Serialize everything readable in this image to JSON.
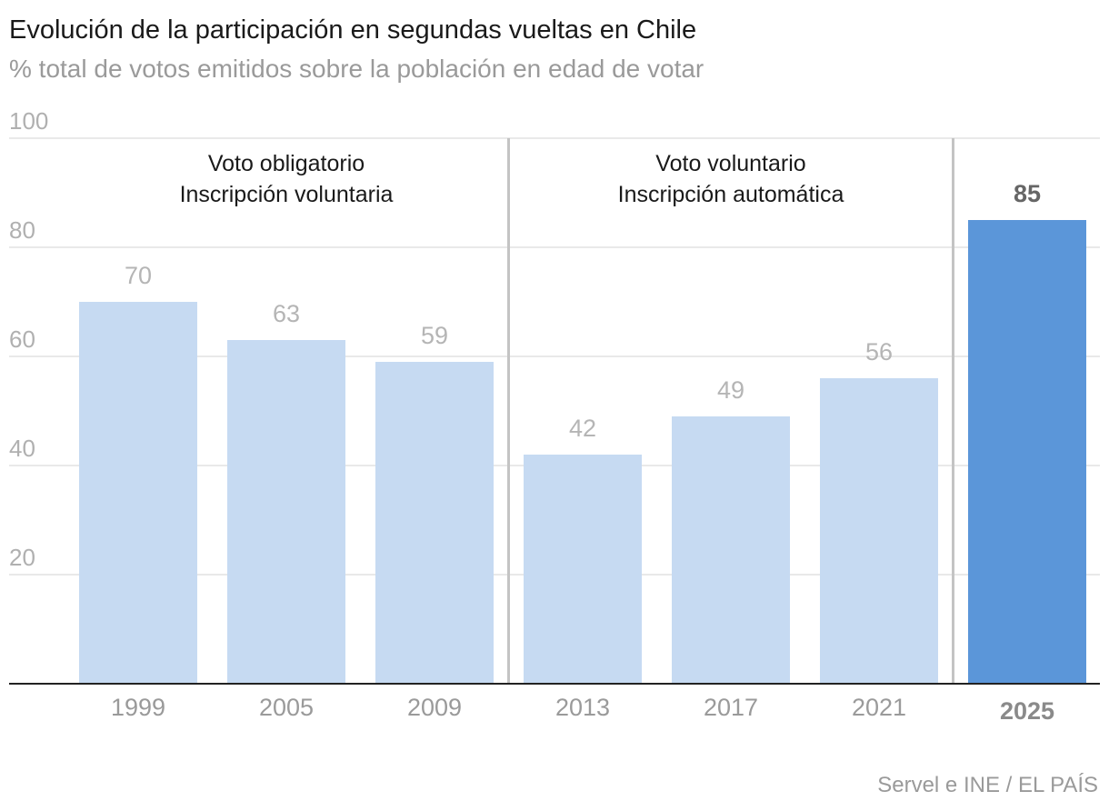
{
  "chart_data": {
    "type": "bar",
    "title": "Evolución de la participación en segundas vueltas en Chile",
    "subtitle": "% total de votos emitidos sobre la población en edad de votar",
    "categories": [
      "1999",
      "2005",
      "2009",
      "2013",
      "2017",
      "2021",
      "2025"
    ],
    "values": [
      70,
      63,
      59,
      42,
      49,
      56,
      85
    ],
    "highlight": [
      "2025"
    ],
    "ylim": [
      0,
      100
    ],
    "yticks": [
      20,
      40,
      60,
      80,
      100
    ],
    "grid": true,
    "periods": [
      {
        "line1": "Voto obligatorio",
        "line2": "Inscripción voluntaria",
        "categories": [
          "1999",
          "2005",
          "2009"
        ]
      },
      {
        "line1": "Voto voluntario",
        "line2": "Inscripción automática",
        "categories": [
          "2013",
          "2017",
          "2021"
        ]
      }
    ],
    "source": "Servel e INE / EL PAÍS",
    "colors": {
      "bar": "#c6daf2",
      "bar_highlight": "#5b96d9"
    }
  }
}
